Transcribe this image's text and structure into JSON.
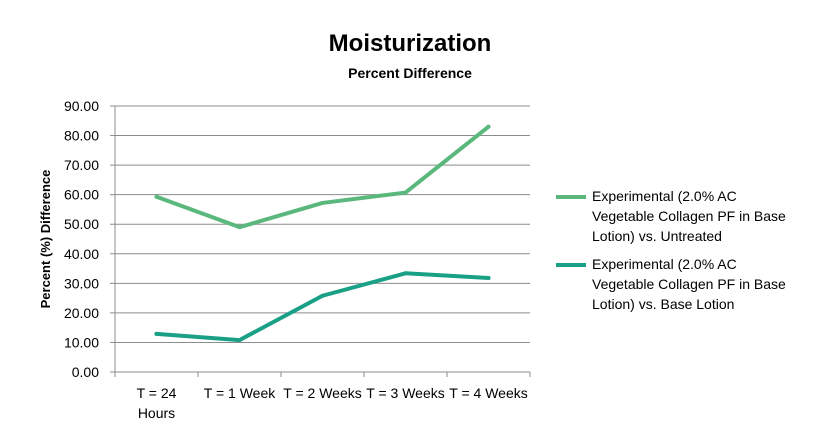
{
  "chart_data": {
    "type": "line",
    "title": "Moisturization",
    "subtitle": "Percent Difference",
    "xlabel": "",
    "ylabel": "Percent (%) Difference",
    "categories": [
      [
        "T = 24",
        "Hours"
      ],
      [
        "T = 1 Week"
      ],
      [
        "T = 2 Weeks"
      ],
      [
        "T = 3 Weeks"
      ],
      [
        "T = 4 Weeks"
      ]
    ],
    "ylim": [
      0,
      90
    ],
    "yticks": [
      "0.00",
      "10.00",
      "20.00",
      "30.00",
      "40.00",
      "50.00",
      "60.00",
      "70.00",
      "80.00",
      "90.00"
    ],
    "grid": true,
    "legend_position": "right",
    "series": [
      {
        "name": "Experimental (2.0% AC Vegetable Collagen PF in Base Lotion) vs. Untreated",
        "legend_lines": [
          "Experimental (2.0% AC",
          "Vegetable Collagen PF in Base",
          "Lotion) vs. Untreated"
        ],
        "color": "#5BB87C",
        "values": [
          59.3,
          49.0,
          57.2,
          60.7,
          83.0
        ]
      },
      {
        "name": "Experimental (2.0% AC Vegetable Collagen PF in Base Lotion) vs. Base Lotion",
        "legend_lines": [
          "Experimental (2.0% AC",
          "Vegetable Collagen PF in Base",
          "Lotion) vs. Base Lotion"
        ],
        "color": "#1AA086",
        "values": [
          12.9,
          10.8,
          25.8,
          33.4,
          31.8
        ]
      }
    ]
  }
}
